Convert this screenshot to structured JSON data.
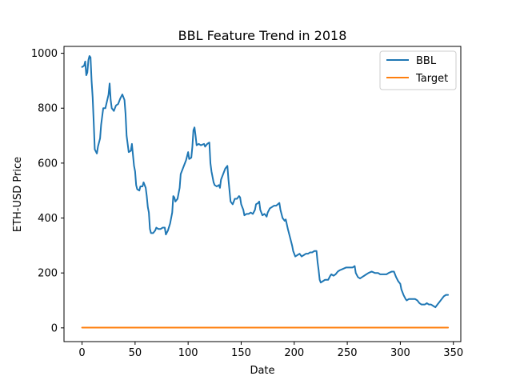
{
  "chart_data": {
    "type": "line",
    "title": "BBL Feature Trend in 2018",
    "xlabel": "Date",
    "ylabel": "ETH-USD Price",
    "xlim": [
      -17,
      357
    ],
    "ylim": [
      -50,
      1025
    ],
    "xticks": [
      0,
      50,
      100,
      150,
      200,
      250,
      300,
      350
    ],
    "yticks": [
      0,
      200,
      400,
      600,
      800,
      1000
    ],
    "grid": false,
    "legend_position": "top-right",
    "series": [
      {
        "name": "BBL",
        "color": "#1f77b4",
        "points": [
          [
            0,
            950
          ],
          [
            2,
            955
          ],
          [
            3,
            970
          ],
          [
            4,
            920
          ],
          [
            5,
            930
          ],
          [
            6,
            975
          ],
          [
            7,
            990
          ],
          [
            8,
            985
          ],
          [
            9,
            900
          ],
          [
            10,
            840
          ],
          [
            11,
            750
          ],
          [
            12,
            650
          ],
          [
            14,
            635
          ],
          [
            15,
            660
          ],
          [
            17,
            690
          ],
          [
            18,
            740
          ],
          [
            19,
            770
          ],
          [
            20,
            800
          ],
          [
            22,
            800
          ],
          [
            25,
            850
          ],
          [
            26,
            890
          ],
          [
            27,
            830
          ],
          [
            28,
            800
          ],
          [
            30,
            790
          ],
          [
            32,
            810
          ],
          [
            34,
            815
          ],
          [
            36,
            835
          ],
          [
            38,
            850
          ],
          [
            40,
            830
          ],
          [
            41,
            780
          ],
          [
            42,
            700
          ],
          [
            44,
            640
          ],
          [
            46,
            645
          ],
          [
            47,
            670
          ],
          [
            48,
            630
          ],
          [
            49,
            590
          ],
          [
            50,
            570
          ],
          [
            51,
            520
          ],
          [
            52,
            505
          ],
          [
            54,
            500
          ],
          [
            55,
            515
          ],
          [
            57,
            515
          ],
          [
            58,
            530
          ],
          [
            60,
            510
          ],
          [
            61,
            480
          ],
          [
            62,
            440
          ],
          [
            63,
            420
          ],
          [
            64,
            360
          ],
          [
            65,
            345
          ],
          [
            67,
            345
          ],
          [
            69,
            355
          ],
          [
            70,
            365
          ],
          [
            72,
            360
          ],
          [
            74,
            360
          ],
          [
            76,
            365
          ],
          [
            78,
            365
          ],
          [
            79,
            340
          ],
          [
            81,
            355
          ],
          [
            83,
            380
          ],
          [
            85,
            420
          ],
          [
            86,
            480
          ],
          [
            87,
            475
          ],
          [
            88,
            460
          ],
          [
            90,
            470
          ],
          [
            92,
            510
          ],
          [
            93,
            560
          ],
          [
            95,
            580
          ],
          [
            97,
            600
          ],
          [
            98,
            610
          ],
          [
            100,
            640
          ],
          [
            101,
            615
          ],
          [
            103,
            620
          ],
          [
            104,
            660
          ],
          [
            105,
            720
          ],
          [
            106,
            730
          ],
          [
            107,
            700
          ],
          [
            108,
            665
          ],
          [
            110,
            670
          ],
          [
            112,
            665
          ],
          [
            115,
            670
          ],
          [
            116,
            660
          ],
          [
            118,
            670
          ],
          [
            120,
            675
          ],
          [
            121,
            600
          ],
          [
            122,
            570
          ],
          [
            124,
            530
          ],
          [
            125,
            520
          ],
          [
            127,
            515
          ],
          [
            129,
            520
          ],
          [
            130,
            510
          ],
          [
            131,
            540
          ],
          [
            133,
            560
          ],
          [
            135,
            580
          ],
          [
            137,
            590
          ],
          [
            138,
            540
          ],
          [
            139,
            500
          ],
          [
            140,
            460
          ],
          [
            142,
            450
          ],
          [
            144,
            470
          ],
          [
            146,
            470
          ],
          [
            148,
            480
          ],
          [
            149,
            475
          ],
          [
            150,
            450
          ],
          [
            152,
            430
          ],
          [
            153,
            410
          ],
          [
            155,
            415
          ],
          [
            157,
            415
          ],
          [
            159,
            420
          ],
          [
            161,
            415
          ],
          [
            163,
            430
          ],
          [
            164,
            450
          ],
          [
            166,
            455
          ],
          [
            167,
            460
          ],
          [
            168,
            430
          ],
          [
            170,
            410
          ],
          [
            172,
            415
          ],
          [
            174,
            405
          ],
          [
            175,
            420
          ],
          [
            177,
            435
          ],
          [
            179,
            440
          ],
          [
            181,
            445
          ],
          [
            183,
            445
          ],
          [
            186,
            455
          ],
          [
            187,
            430
          ],
          [
            189,
            400
          ],
          [
            191,
            390
          ],
          [
            192,
            395
          ],
          [
            194,
            360
          ],
          [
            196,
            330
          ],
          [
            198,
            300
          ],
          [
            199,
            280
          ],
          [
            201,
            260
          ],
          [
            203,
            265
          ],
          [
            205,
            270
          ],
          [
            207,
            260
          ],
          [
            209,
            265
          ],
          [
            211,
            270
          ],
          [
            213,
            270
          ],
          [
            215,
            275
          ],
          [
            217,
            275
          ],
          [
            219,
            280
          ],
          [
            221,
            280
          ],
          [
            222,
            240
          ],
          [
            223,
            210
          ],
          [
            224,
            175
          ],
          [
            225,
            165
          ],
          [
            227,
            170
          ],
          [
            229,
            175
          ],
          [
            232,
            175
          ],
          [
            234,
            190
          ],
          [
            235,
            195
          ],
          [
            237,
            190
          ],
          [
            239,
            195
          ],
          [
            241,
            205
          ],
          [
            243,
            210
          ],
          [
            246,
            215
          ],
          [
            249,
            220
          ],
          [
            252,
            220
          ],
          [
            255,
            220
          ],
          [
            257,
            225
          ],
          [
            258,
            200
          ],
          [
            260,
            185
          ],
          [
            262,
            180
          ],
          [
            264,
            185
          ],
          [
            266,
            190
          ],
          [
            268,
            195
          ],
          [
            270,
            200
          ],
          [
            273,
            205
          ],
          [
            276,
            200
          ],
          [
            279,
            200
          ],
          [
            281,
            195
          ],
          [
            284,
            195
          ],
          [
            287,
            195
          ],
          [
            289,
            200
          ],
          [
            292,
            205
          ],
          [
            294,
            205
          ],
          [
            296,
            185
          ],
          [
            298,
            170
          ],
          [
            300,
            160
          ],
          [
            301,
            140
          ],
          [
            303,
            120
          ],
          [
            305,
            105
          ],
          [
            306,
            100
          ],
          [
            308,
            105
          ],
          [
            311,
            105
          ],
          [
            314,
            105
          ],
          [
            316,
            100
          ],
          [
            318,
            90
          ],
          [
            320,
            85
          ],
          [
            323,
            85
          ],
          [
            325,
            90
          ],
          [
            327,
            85
          ],
          [
            329,
            85
          ],
          [
            331,
            80
          ],
          [
            333,
            75
          ],
          [
            335,
            85
          ],
          [
            337,
            95
          ],
          [
            339,
            105
          ],
          [
            341,
            115
          ],
          [
            343,
            120
          ],
          [
            345,
            120
          ]
        ]
      },
      {
        "name": "Target",
        "color": "#ff7f0e",
        "points": [
          [
            0,
            1
          ],
          [
            345,
            1
          ]
        ]
      }
    ]
  }
}
